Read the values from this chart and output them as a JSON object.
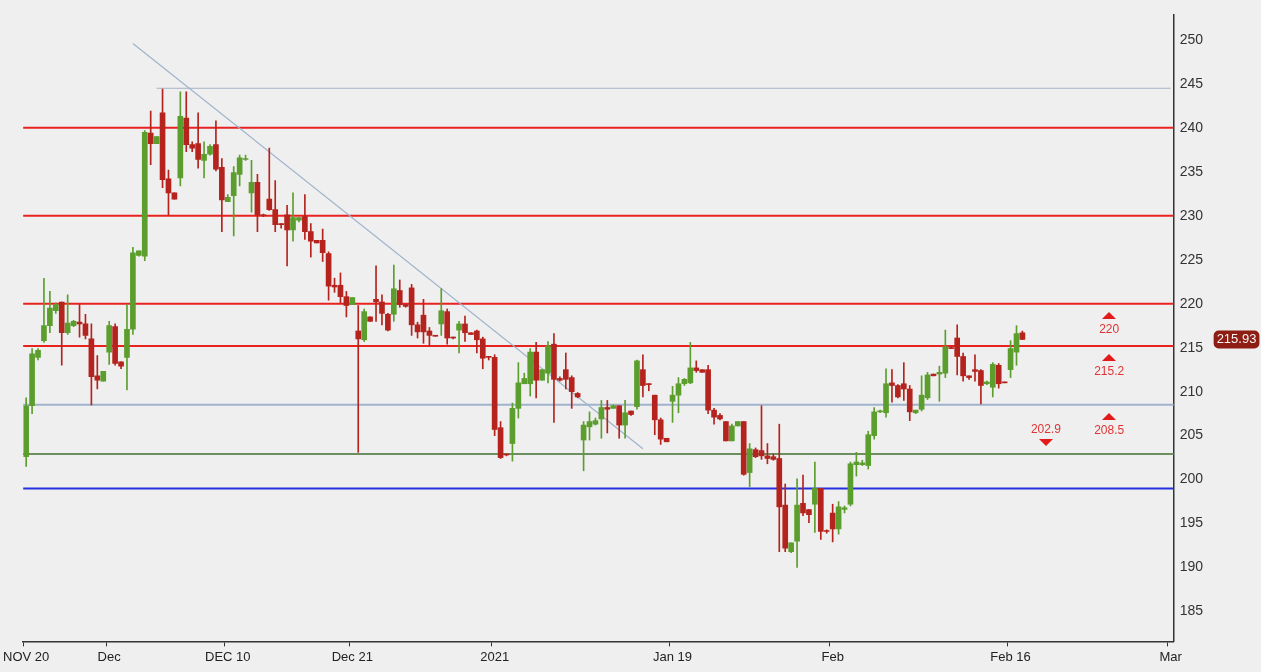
{
  "chart_data": {
    "type": "candlestick",
    "categories": [
      "NOV 20",
      null,
      null,
      null,
      null,
      null,
      null,
      null,
      null,
      null,
      null,
      null,
      null,
      null,
      "Dec",
      null,
      null,
      null,
      null,
      null,
      null,
      null,
      null,
      null,
      null,
      null,
      null,
      null,
      null,
      null,
      null,
      null,
      null,
      null,
      "DEC 10",
      null,
      null,
      null,
      null,
      null,
      null,
      null,
      null,
      null,
      null,
      null,
      null,
      null,
      null,
      null,
      null,
      null,
      null,
      null,
      null,
      "Dec 21",
      null,
      null,
      null,
      null,
      null,
      null,
      null,
      null,
      null,
      null,
      null,
      null,
      null,
      null,
      null,
      null,
      null,
      null,
      null,
      null,
      null,
      null,
      null,
      "2021",
      null,
      null,
      null,
      null,
      null,
      null,
      null,
      null,
      null,
      null,
      null,
      null,
      null,
      null,
      null,
      null,
      null,
      null,
      null,
      null,
      null,
      null,
      null,
      null,
      null,
      null,
      null,
      null,
      null,
      "Jan 19",
      null,
      null,
      null,
      null,
      null,
      null,
      null,
      null,
      null,
      null,
      null,
      null,
      null,
      null,
      null,
      null,
      null,
      null,
      null,
      null,
      null,
      null,
      null,
      null,
      null,
      null,
      "Feb",
      null,
      null,
      null,
      null,
      null,
      null,
      null,
      null,
      null,
      null,
      null,
      null,
      null,
      null,
      null,
      null,
      null,
      null,
      null,
      null,
      null,
      null,
      null,
      null,
      null,
      null,
      null,
      null,
      null,
      "Feb 16",
      null,
      null,
      null,
      null,
      null,
      null,
      null,
      null,
      null,
      null,
      null,
      null,
      null,
      null,
      null,
      null,
      null,
      null,
      null,
      null,
      null,
      null,
      null,
      null,
      null,
      null,
      "Mar"
    ],
    "ohlc": [
      [
        202.6,
        209.3,
        201.5,
        208.4
      ],
      [
        208.4,
        214.9,
        207.5,
        214.3
      ],
      [
        213.9,
        214.9,
        213.6,
        214.7
      ],
      [
        215.8,
        222.9,
        215.6,
        217.5
      ],
      [
        217.5,
        221.4,
        216.7,
        219.5
      ],
      [
        219.2,
        220.1,
        218.9,
        219.9
      ],
      [
        220.2,
        220.2,
        213.0,
        216.7
      ],
      [
        216.7,
        221.0,
        216.5,
        217.8
      ],
      [
        217.5,
        218.1,
        217.4,
        218.0
      ],
      [
        217.9,
        219.9,
        216.2,
        217.7
      ],
      [
        217.7,
        218.8,
        216.0,
        216.4
      ],
      [
        216.0,
        217.7,
        208.5,
        211.7
      ],
      [
        211.8,
        214.1,
        210.3,
        211.3
      ],
      [
        211.2,
        212.3,
        211.2,
        212.3
      ],
      [
        214.5,
        218.0,
        213.1,
        217.5
      ],
      [
        217.4,
        217.7,
        213.0,
        213.2
      ],
      [
        213.4,
        213.4,
        212.6,
        212.9
      ],
      [
        213.9,
        219.9,
        210.2,
        217.1
      ],
      [
        217.1,
        226.4,
        216.5,
        225.8
      ],
      [
        225.5,
        226.0,
        225.4,
        226.0
      ],
      [
        225.4,
        239.7,
        224.9,
        239.5
      ],
      [
        239.4,
        241.9,
        235.8,
        238.2
      ],
      [
        238.2,
        239.0,
        238.2,
        239.0
      ],
      [
        241.7,
        244.4,
        233.2,
        234.1
      ],
      [
        234.2,
        235.2,
        230.1,
        232.6
      ],
      [
        232.6,
        232.6,
        231.9,
        231.9
      ],
      [
        234.3,
        244.1,
        233.4,
        241.3
      ],
      [
        241.1,
        244.1,
        237.3,
        238.1
      ],
      [
        238.1,
        238.4,
        237.3,
        237.7
      ],
      [
        238.2,
        241.7,
        235.4,
        236.4
      ],
      [
        236.3,
        238.4,
        234.3,
        237.0
      ],
      [
        237.0,
        238.1,
        236.9,
        237.9
      ],
      [
        238.1,
        240.8,
        235.1,
        235.3
      ],
      [
        235.5,
        236.5,
        228.2,
        231.8
      ],
      [
        231.6,
        232.4,
        231.6,
        232.1
      ],
      [
        232.3,
        235.6,
        227.7,
        234.9
      ],
      [
        234.7,
        236.9,
        233.4,
        236.6
      ],
      [
        236.4,
        236.9,
        236.3,
        236.5
      ],
      [
        232.6,
        236.3,
        230.4,
        233.8
      ],
      [
        233.8,
        234.7,
        228.2,
        230.1
      ],
      [
        230.1,
        230.2,
        229.9,
        230.0
      ],
      [
        231.9,
        237.7,
        230.6,
        230.7
      ],
      [
        230.7,
        234.0,
        228.2,
        229.0
      ],
      [
        229.1,
        229.1,
        228.6,
        229.0
      ],
      [
        230.1,
        231.2,
        224.3,
        228.4
      ],
      [
        228.4,
        232.6,
        227.1,
        229.8
      ],
      [
        229.5,
        229.8,
        229.3,
        229.8
      ],
      [
        229.9,
        232.4,
        227.3,
        228.2
      ],
      [
        228.2,
        229.1,
        225.3,
        227.1
      ],
      [
        227.2,
        227.2,
        226.9,
        226.9
      ],
      [
        227.2,
        228.5,
        224.8,
        225.8
      ],
      [
        225.7,
        225.9,
        220.4,
        222.0
      ],
      [
        222.1,
        222.9,
        221.3,
        221.9
      ],
      [
        222.1,
        223.5,
        220.1,
        220.8
      ],
      [
        220.8,
        221.4,
        218.5,
        219.8
      ],
      [
        219.9,
        220.7,
        219.9,
        220.7
      ],
      [
        216.9,
        219.8,
        203.1,
        216.0
      ],
      [
        215.9,
        219.4,
        215.7,
        219.1
      ],
      [
        218.5,
        218.5,
        218.0,
        218.0
      ],
      [
        220.5,
        224.3,
        218.0,
        220.2
      ],
      [
        220.2,
        221.0,
        217.6,
        218.9
      ],
      [
        218.8,
        218.9,
        216.9,
        217.0
      ],
      [
        218.8,
        224.4,
        218.0,
        221.7
      ],
      [
        221.5,
        222.7,
        219.6,
        219.9
      ],
      [
        219.9,
        219.9,
        219.6,
        219.7
      ],
      [
        221.8,
        222.2,
        216.4,
        217.6
      ],
      [
        217.6,
        217.9,
        216.1,
        216.8
      ],
      [
        218.7,
        220.5,
        215.5,
        216.8
      ],
      [
        216.9,
        217.3,
        215.2,
        216.4
      ],
      [
        216.4,
        216.4,
        216.3,
        216.3
      ],
      [
        217.7,
        221.7,
        216.4,
        219.2
      ],
      [
        219.1,
        219.4,
        215.4,
        216.1
      ],
      [
        216.2,
        216.2,
        216.0,
        216.1
      ],
      [
        217.0,
        218.0,
        214.4,
        217.7
      ],
      [
        217.7,
        218.6,
        215.7,
        216.7
      ],
      [
        216.7,
        216.7,
        216.5,
        216.5
      ],
      [
        216.9,
        217.0,
        214.4,
        215.9
      ],
      [
        216.0,
        216.2,
        212.6,
        213.8
      ],
      [
        214.0,
        214.0,
        213.6,
        213.9
      ],
      [
        213.9,
        214.2,
        205.0,
        205.7
      ],
      [
        205.9,
        206.6,
        202.4,
        202.5
      ],
      [
        202.9,
        202.9,
        202.7,
        202.8
      ],
      [
        204.1,
        208.7,
        202.1,
        208.1
      ],
      [
        208.1,
        213.3,
        207.0,
        211.0
      ],
      [
        210.9,
        212.1,
        210.9,
        211.5
      ],
      [
        210.9,
        214.9,
        209.5,
        214.5
      ],
      [
        214.5,
        215.6,
        209.3,
        211.3
      ],
      [
        211.3,
        212.5,
        211.3,
        212.5
      ],
      [
        212.1,
        215.7,
        211.0,
        215.2
      ],
      [
        215.4,
        216.6,
        206.5,
        211.4
      ],
      [
        211.5,
        211.7,
        211.2,
        211.3
      ],
      [
        212.5,
        214.4,
        210.3,
        211.4
      ],
      [
        211.6,
        211.8,
        208.1,
        210.0
      ],
      [
        209.8,
        209.9,
        209.3,
        209.4
      ],
      [
        204.5,
        206.6,
        201.0,
        206.2
      ],
      [
        206.0,
        207.7,
        204.5,
        206.6
      ],
      [
        206.3,
        207.0,
        206.2,
        206.7
      ],
      [
        206.9,
        209.0,
        204.7,
        208.2
      ],
      [
        208.2,
        209.0,
        205.3,
        208.0
      ],
      [
        208.1,
        208.5,
        208.1,
        208.4
      ],
      [
        208.4,
        208.4,
        204.7,
        206.2
      ],
      [
        206.2,
        209.0,
        204.7,
        207.6
      ],
      [
        207.8,
        207.8,
        207.3,
        207.4
      ],
      [
        208.3,
        213.6,
        208.0,
        213.5
      ],
      [
        212.5,
        214.2,
        209.4,
        210.7
      ],
      [
        210.9,
        210.9,
        210.1,
        210.8
      ],
      [
        209.6,
        209.6,
        205.1,
        206.8
      ],
      [
        206.8,
        207.0,
        204.0,
        204.6
      ],
      [
        204.7,
        204.7,
        204.3,
        204.3
      ],
      [
        208.9,
        210.6,
        206.5,
        209.6
      ],
      [
        209.6,
        211.6,
        207.6,
        210.9
      ],
      [
        210.9,
        211.5,
        210.7,
        211.4
      ],
      [
        211.0,
        215.6,
        210.9,
        212.7
      ],
      [
        212.7,
        213.5,
        212.2,
        212.4
      ],
      [
        212.5,
        212.5,
        212.2,
        212.2
      ],
      [
        212.5,
        213.0,
        207.5,
        207.9
      ],
      [
        207.9,
        208.1,
        206.3,
        207.1
      ],
      [
        207.3,
        207.5,
        206.8,
        206.9
      ],
      [
        206.6,
        206.6,
        204.4,
        204.4
      ],
      [
        204.4,
        206.3,
        204.4,
        206.1
      ],
      [
        206.1,
        206.6,
        206.1,
        206.6
      ],
      [
        206.6,
        206.6,
        200.5,
        200.6
      ],
      [
        200.8,
        204.1,
        199.2,
        203.5
      ],
      [
        203.4,
        203.6,
        202.5,
        202.6
      ],
      [
        203.3,
        208.4,
        202.3,
        202.7
      ],
      [
        202.7,
        204.1,
        201.8,
        202.4
      ],
      [
        202.6,
        202.9,
        202.2,
        202.3
      ],
      [
        202.4,
        206.3,
        191.8,
        196.9
      ],
      [
        197.1,
        199.5,
        191.8,
        192.2
      ],
      [
        191.8,
        192.8,
        191.7,
        192.8
      ],
      [
        193.0,
        200.1,
        190.0,
        197.1
      ],
      [
        197.3,
        200.5,
        195.9,
        196.2
      ],
      [
        196.6,
        196.6,
        195.1,
        196.0
      ],
      [
        197.2,
        202.0,
        194.0,
        199.0
      ],
      [
        199.0,
        199.0,
        193.2,
        194.1
      ],
      [
        194.2,
        194.3,
        193.9,
        194.1
      ],
      [
        196.2,
        197.2,
        192.9,
        194.4
      ],
      [
        194.4,
        197.5,
        193.8,
        196.9
      ],
      [
        196.6,
        197.0,
        196.2,
        196.8
      ],
      [
        197.2,
        202.0,
        197.0,
        201.8
      ],
      [
        201.7,
        203.1,
        200.4,
        202.0
      ],
      [
        201.7,
        202.2,
        201.6,
        201.9
      ],
      [
        201.6,
        205.5,
        201.2,
        205.1
      ],
      [
        205.0,
        208.2,
        204.6,
        207.7
      ],
      [
        207.7,
        207.9,
        207.6,
        207.8
      ],
      [
        207.6,
        212.6,
        207.1,
        210.9
      ],
      [
        211.0,
        212.5,
        208.8,
        210.7
      ],
      [
        210.7,
        210.8,
        209.3,
        209.4
      ],
      [
        210.9,
        213.3,
        209.0,
        210.3
      ],
      [
        210.3,
        210.7,
        206.7,
        207.7
      ],
      [
        207.6,
        207.9,
        207.5,
        207.9
      ],
      [
        208.0,
        211.8,
        207.8,
        209.6
      ],
      [
        209.3,
        212.2,
        209.1,
        211.9
      ],
      [
        212.0,
        212.0,
        211.8,
        211.8
      ],
      [
        212.0,
        212.9,
        208.9,
        212.2
      ],
      [
        212.1,
        217.0,
        211.6,
        215.1
      ],
      [
        215.0,
        215.1,
        214.9,
        214.9
      ],
      [
        216.1,
        217.6,
        211.9,
        214.0
      ],
      [
        214.0,
        214.4,
        211.2,
        211.8
      ],
      [
        211.8,
        211.8,
        211.4,
        211.6
      ],
      [
        212.5,
        214.2,
        211.2,
        212.3
      ],
      [
        212.4,
        212.5,
        208.6,
        210.7
      ],
      [
        210.9,
        211.2,
        210.8,
        211.1
      ],
      [
        210.5,
        213.3,
        209.4,
        213.1
      ],
      [
        213.0,
        213.2,
        210.4,
        210.9
      ],
      [
        211.1,
        211.1,
        211.0,
        211.0
      ],
      [
        212.5,
        215.8,
        211.6,
        214.9
      ],
      [
        214.5,
        217.5,
        213.0,
        216.6
      ],
      [
        216.7,
        216.9,
        215.9,
        215.93
      ],
      null,
      null,
      null,
      null,
      null,
      null,
      null,
      null,
      null,
      null,
      null,
      null,
      null,
      null,
      null,
      null,
      null,
      null,
      null,
      null,
      null,
      null,
      null,
      null,
      null
    ],
    "series": [
      {
        "type": "line",
        "color": "#9fb3cc",
        "values": [
          null,
          null,
          null,
          null,
          null,
          null,
          null,
          null,
          null,
          null,
          null,
          null,
          null,
          null,
          null,
          null,
          null,
          null,
          249.6,
          null,
          null,
          null,
          null,
          null,
          null,
          null,
          null,
          null,
          null,
          null,
          null,
          null,
          null,
          null,
          null,
          null,
          null,
          null,
          null,
          null,
          null,
          null,
          null,
          null,
          null,
          null,
          null,
          null,
          null,
          null,
          null,
          null,
          null,
          null,
          null,
          null,
          null,
          null,
          null,
          null,
          null,
          null,
          null,
          null,
          null,
          null,
          null,
          null,
          null,
          null,
          null,
          null,
          null,
          null,
          null,
          null,
          null,
          null,
          null,
          null,
          null,
          null,
          null,
          null,
          null,
          null,
          null,
          null,
          null,
          null,
          null,
          null,
          null,
          null,
          null,
          null,
          null,
          null,
          null,
          null,
          null,
          null,
          null,
          null,
          203.5,
          null,
          null,
          null,
          null,
          null,
          null,
          null,
          null,
          null,
          null,
          null,
          null,
          null,
          null,
          null,
          null,
          null,
          null,
          null,
          null,
          null,
          null,
          null,
          null,
          null,
          null,
          null,
          null,
          null,
          null,
          null,
          null,
          null,
          null,
          null,
          null,
          null,
          null,
          null,
          null,
          null,
          null,
          null,
          null,
          null,
          null,
          null,
          null,
          null,
          null,
          null,
          null,
          null,
          null,
          null,
          null,
          null,
          null,
          null,
          null,
          null,
          null,
          null,
          null,
          null,
          null,
          null,
          null,
          null,
          null,
          null,
          null,
          null,
          null,
          null,
          null,
          null,
          null,
          null,
          null,
          null,
          null,
          null,
          null,
          null,
          null,
          null,
          null,
          null
        ]
      },
      {
        "type": "line",
        "color": "#a3b2c4",
        "values": [
          null,
          null,
          null,
          null,
          null,
          null,
          null,
          null,
          null,
          null,
          null,
          null,
          null,
          null,
          null,
          null,
          null,
          null,
          null,
          null,
          null,
          null,
          244.5,
          null,
          null,
          null,
          null,
          null,
          null,
          null,
          null,
          null,
          null,
          null,
          null,
          null,
          null,
          null,
          null,
          null,
          null,
          null,
          null,
          null,
          null,
          null,
          null,
          null,
          null,
          null,
          null,
          null,
          null,
          null,
          null,
          null,
          null,
          null,
          null,
          null,
          null,
          null,
          null,
          null,
          null,
          null,
          null,
          null,
          null,
          null,
          null,
          null,
          null,
          null,
          null,
          null,
          null,
          null,
          null,
          null,
          null,
          null,
          null,
          null,
          null,
          null,
          null,
          null,
          null,
          null,
          null,
          null,
          null,
          null,
          null,
          null,
          null,
          null,
          null,
          null,
          null,
          null,
          null,
          null,
          null,
          null,
          null,
          null,
          null,
          null,
          null,
          null,
          null,
          null,
          null,
          null,
          null,
          null,
          null,
          null,
          null,
          null,
          null,
          null,
          null,
          null,
          null,
          null,
          null,
          null,
          null,
          null,
          null,
          null,
          null,
          null,
          null,
          null,
          null,
          null,
          null,
          null,
          null,
          null,
          null,
          null,
          null,
          null,
          null,
          null,
          null,
          null,
          null,
          null,
          null,
          null,
          null,
          null,
          null,
          null,
          null,
          null,
          null,
          null,
          null,
          null,
          null,
          null,
          null,
          null,
          null,
          null,
          null,
          null,
          null,
          null,
          null,
          null,
          null,
          null,
          null,
          null,
          null,
          null,
          null,
          null,
          null,
          null,
          null,
          null,
          null,
          null,
          null,
          244.5
        ]
      }
    ],
    "ref_lines": [
      {
        "axis": "y",
        "value": 240,
        "color": "#e8231f"
      },
      {
        "axis": "y",
        "value": 230,
        "color": "#e8231f"
      },
      {
        "axis": "y",
        "value": 220,
        "color": "#e8231f"
      },
      {
        "axis": "y",
        "value": 215.2,
        "color": "#e8231f"
      },
      {
        "axis": "y",
        "value": 208.5,
        "color": "#9fb3cc"
      },
      {
        "axis": "y",
        "value": 202.9,
        "color": "#6b8f5e"
      },
      {
        "axis": "y",
        "value": 199,
        "color": "#2430e0"
      }
    ],
    "annotations": [
      {
        "text": "220",
        "y": 220
      },
      {
        "text": "215.2",
        "y": 215.2
      },
      {
        "text": "208.5",
        "y": 208.5
      },
      {
        "text": "202.9",
        "y": 202.9
      },
      "215.93"
    ],
    "ylim": [
      181.6,
      252.9
    ],
    "yticks": [
      185,
      190,
      195,
      200,
      205,
      210,
      215,
      220,
      225,
      230,
      235,
      240,
      245,
      250
    ],
    "legend": false
  }
}
